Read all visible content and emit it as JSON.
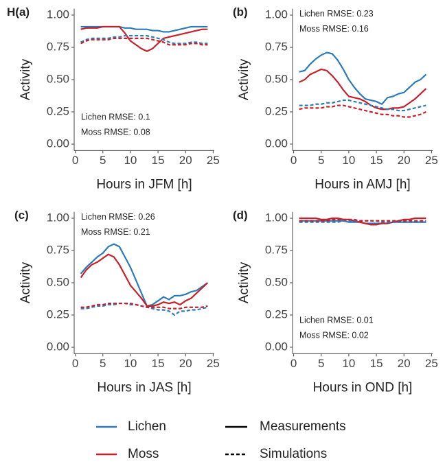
{
  "chart_data": [
    {
      "type": "line",
      "label": "H(a)",
      "xlabel": "Hours in JFM [h]",
      "ylabel": "Activity",
      "annotations": [
        "Lichen RMSE: 0.1",
        "Moss RMSE: 0.08"
      ],
      "annotation_corner": "bottom-left",
      "xlim": [
        -0.2,
        25.2
      ],
      "ylim": [
        -0.05,
        1.05
      ],
      "xticks": [
        0,
        5,
        10,
        15,
        20,
        25
      ],
      "yticks": [
        {
          "value": 0,
          "label": "0.00"
        },
        0.25,
        {
          "value": 0.5,
          "label": "0.50"
        },
        0.75,
        {
          "value": 1,
          "label": "1.00"
        }
      ],
      "x": [
        1,
        2,
        3,
        4,
        5,
        6,
        7,
        8,
        9,
        10,
        11,
        12,
        13,
        14,
        15,
        16,
        17,
        18,
        19,
        20,
        21,
        22,
        23,
        24
      ],
      "series": [
        {
          "color": "#2b7bba",
          "dash": "solid",
          "values": [
            0.91,
            0.91,
            0.91,
            0.91,
            0.91,
            0.91,
            0.91,
            0.91,
            0.9,
            0.9,
            0.89,
            0.89,
            0.89,
            0.88,
            0.88,
            0.87,
            0.87,
            0.88,
            0.89,
            0.9,
            0.91,
            0.91,
            0.91,
            0.91
          ]
        },
        {
          "color": "#c8202a",
          "dash": "solid",
          "values": [
            0.89,
            0.9,
            0.9,
            0.9,
            0.91,
            0.91,
            0.91,
            0.91,
            0.86,
            0.8,
            0.77,
            0.74,
            0.72,
            0.74,
            0.78,
            0.82,
            0.83,
            0.84,
            0.85,
            0.86,
            0.87,
            0.88,
            0.89,
            0.89
          ]
        },
        {
          "color": "#2b7bba",
          "dash": "dashed",
          "values": [
            0.79,
            0.81,
            0.82,
            0.82,
            0.82,
            0.82,
            0.83,
            0.83,
            0.84,
            0.84,
            0.84,
            0.84,
            0.84,
            0.83,
            0.82,
            0.81,
            0.79,
            0.78,
            0.78,
            0.78,
            0.79,
            0.79,
            0.78,
            0.78
          ]
        },
        {
          "color": "#c8202a",
          "dash": "dashed",
          "values": [
            0.78,
            0.8,
            0.81,
            0.81,
            0.81,
            0.81,
            0.82,
            0.82,
            0.82,
            0.82,
            0.82,
            0.82,
            0.82,
            0.81,
            0.8,
            0.79,
            0.77,
            0.77,
            0.77,
            0.77,
            0.78,
            0.78,
            0.77,
            0.77
          ]
        }
      ]
    },
    {
      "type": "line",
      "label": "(b)",
      "xlabel": "Hours in AMJ [h]",
      "ylabel": "Activity",
      "annotations": [
        "Lichen RMSE: 0.23",
        "Moss RMSE: 0.16"
      ],
      "annotation_corner": "top-left",
      "xlim": [
        -0.2,
        25.2
      ],
      "ylim": [
        -0.05,
        1.05
      ],
      "xticks": [
        0,
        5,
        10,
        15,
        20,
        25
      ],
      "yticks": [
        {
          "value": 0,
          "label": "0.00"
        },
        0.25,
        {
          "value": 0.5,
          "label": "0.50"
        },
        0.75,
        {
          "value": 1,
          "label": "1.00"
        }
      ],
      "x": [
        1,
        2,
        3,
        4,
        5,
        6,
        7,
        8,
        9,
        10,
        11,
        12,
        13,
        14,
        15,
        16,
        17,
        18,
        19,
        20,
        21,
        22,
        23,
        24
      ],
      "series": [
        {
          "color": "#2b7bba",
          "dash": "solid",
          "values": [
            0.56,
            0.57,
            0.62,
            0.66,
            0.69,
            0.71,
            0.7,
            0.65,
            0.58,
            0.5,
            0.44,
            0.39,
            0.35,
            0.34,
            0.33,
            0.31,
            0.36,
            0.37,
            0.39,
            0.4,
            0.44,
            0.48,
            0.5,
            0.54
          ]
        },
        {
          "color": "#c8202a",
          "dash": "solid",
          "values": [
            0.48,
            0.5,
            0.54,
            0.56,
            0.58,
            0.57,
            0.53,
            0.48,
            0.42,
            0.37,
            0.36,
            0.35,
            0.33,
            0.3,
            0.28,
            0.27,
            0.27,
            0.28,
            0.28,
            0.29,
            0.32,
            0.35,
            0.39,
            0.43
          ]
        },
        {
          "color": "#2b7bba",
          "dash": "dashed",
          "values": [
            0.3,
            0.3,
            0.3,
            0.31,
            0.31,
            0.32,
            0.32,
            0.33,
            0.34,
            0.34,
            0.33,
            0.32,
            0.31,
            0.3,
            0.29,
            0.28,
            0.27,
            0.27,
            0.26,
            0.26,
            0.27,
            0.28,
            0.29,
            0.3
          ]
        },
        {
          "color": "#c8202a",
          "dash": "dashed",
          "values": [
            0.27,
            0.28,
            0.28,
            0.28,
            0.28,
            0.29,
            0.29,
            0.3,
            0.3,
            0.29,
            0.28,
            0.27,
            0.26,
            0.25,
            0.24,
            0.23,
            0.23,
            0.22,
            0.22,
            0.21,
            0.21,
            0.22,
            0.23,
            0.25
          ]
        }
      ]
    },
    {
      "type": "line",
      "label": "(c)",
      "xlabel": "Hours in JAS [h]",
      "ylabel": "Activity",
      "annotations": [
        "Lichen RMSE: 0.26",
        "Moss RMSE: 0.21"
      ],
      "annotation_corner": "top-left",
      "xlim": [
        -0.2,
        25.2
      ],
      "ylim": [
        -0.05,
        1.05
      ],
      "xticks": [
        0,
        5,
        10,
        15,
        20,
        25
      ],
      "yticks": [
        {
          "value": 0,
          "label": "0.00"
        },
        0.25,
        {
          "value": 0.5,
          "label": "0.50"
        },
        0.75,
        {
          "value": 1,
          "label": "1.00"
        }
      ],
      "x": [
        1,
        2,
        3,
        4,
        5,
        6,
        7,
        8,
        9,
        10,
        11,
        12,
        13,
        14,
        15,
        16,
        17,
        18,
        19,
        20,
        21,
        22,
        23,
        24
      ],
      "series": [
        {
          "color": "#2b7bba",
          "dash": "solid",
          "values": [
            0.57,
            0.62,
            0.66,
            0.7,
            0.73,
            0.78,
            0.8,
            0.78,
            0.7,
            0.62,
            0.52,
            0.42,
            0.32,
            0.33,
            0.36,
            0.39,
            0.37,
            0.4,
            0.4,
            0.41,
            0.43,
            0.44,
            0.47,
            0.5
          ]
        },
        {
          "color": "#c8202a",
          "dash": "solid",
          "values": [
            0.54,
            0.6,
            0.64,
            0.66,
            0.69,
            0.72,
            0.7,
            0.64,
            0.56,
            0.48,
            0.43,
            0.38,
            0.32,
            0.32,
            0.33,
            0.35,
            0.34,
            0.35,
            0.33,
            0.36,
            0.38,
            0.42,
            0.46,
            0.5
          ]
        },
        {
          "color": "#2b7bba",
          "dash": "dashed",
          "values": [
            0.3,
            0.3,
            0.31,
            0.32,
            0.32,
            0.33,
            0.33,
            0.34,
            0.34,
            0.33,
            0.33,
            0.32,
            0.31,
            0.3,
            0.29,
            0.29,
            0.28,
            0.25,
            0.28,
            0.28,
            0.29,
            0.29,
            0.3,
            0.31
          ]
        },
        {
          "color": "#c8202a",
          "dash": "dashed",
          "values": [
            0.31,
            0.31,
            0.32,
            0.33,
            0.33,
            0.34,
            0.34,
            0.34,
            0.34,
            0.34,
            0.33,
            0.32,
            0.31,
            0.31,
            0.31,
            0.31,
            0.3,
            0.3,
            0.3,
            0.31,
            0.31,
            0.31,
            0.31,
            0.32
          ]
        }
      ]
    },
    {
      "type": "line",
      "label": "(d)",
      "xlabel": "Hours in OND [h]",
      "ylabel": "Activity",
      "annotations": [
        "Lichen RMSE: 0.01",
        "Moss RMSE: 0.02"
      ],
      "annotation_corner": "bottom-left",
      "xlim": [
        -0.2,
        25.2
      ],
      "ylim": [
        -0.05,
        1.05
      ],
      "xticks": [
        0,
        5,
        10,
        15,
        20,
        25
      ],
      "yticks": [
        {
          "value": 0,
          "label": "0.00"
        },
        0.25,
        {
          "value": 0.5,
          "label": "0.50"
        },
        0.75,
        {
          "value": 1,
          "label": "1.00"
        }
      ],
      "x": [
        1,
        2,
        3,
        4,
        5,
        6,
        7,
        8,
        9,
        10,
        11,
        12,
        13,
        14,
        15,
        16,
        17,
        18,
        19,
        20,
        21,
        22,
        23,
        24
      ],
      "series": [
        {
          "color": "#2b7bba",
          "dash": "solid",
          "values": [
            0.98,
            0.98,
            0.98,
            0.98,
            0.98,
            0.98,
            0.98,
            0.98,
            0.98,
            0.97,
            0.97,
            0.97,
            0.96,
            0.96,
            0.96,
            0.96,
            0.96,
            0.97,
            0.97,
            0.97,
            0.97,
            0.97,
            0.97,
            0.97
          ]
        },
        {
          "color": "#c8202a",
          "dash": "solid",
          "values": [
            1.0,
            1.0,
            1.0,
            1.0,
            0.99,
            0.99,
            1.0,
            1.0,
            0.99,
            0.99,
            0.98,
            0.97,
            0.96,
            0.95,
            0.95,
            0.96,
            0.96,
            0.97,
            0.98,
            0.99,
            0.99,
            1.0,
            1.0,
            1.0
          ]
        },
        {
          "color": "#2b7bba",
          "dash": "dashed",
          "values": [
            0.97,
            0.97,
            0.97,
            0.97,
            0.97,
            0.97,
            0.97,
            0.97,
            0.98,
            0.98,
            0.98,
            0.98,
            0.98,
            0.98,
            0.98,
            0.97,
            0.97,
            0.97,
            0.97,
            0.97,
            0.97,
            0.97,
            0.97,
            0.97
          ]
        },
        {
          "color": "#c8202a",
          "dash": "dashed",
          "values": [
            0.98,
            0.98,
            0.98,
            0.98,
            0.98,
            0.98,
            0.99,
            0.99,
            0.99,
            0.99,
            0.99,
            0.98,
            0.98,
            0.98,
            0.98,
            0.98,
            0.98,
            0.98,
            0.98,
            0.98,
            0.98,
            0.98,
            0.98,
            0.98
          ]
        }
      ]
    }
  ],
  "legend": {
    "colors": [
      {
        "name": "Lichen",
        "color": "#2b7bba"
      },
      {
        "name": "Moss",
        "color": "#c8202a"
      }
    ],
    "styles": [
      {
        "name": "Measurements",
        "dash": "solid"
      },
      {
        "name": "Simulations",
        "dash": "dashed"
      }
    ]
  }
}
